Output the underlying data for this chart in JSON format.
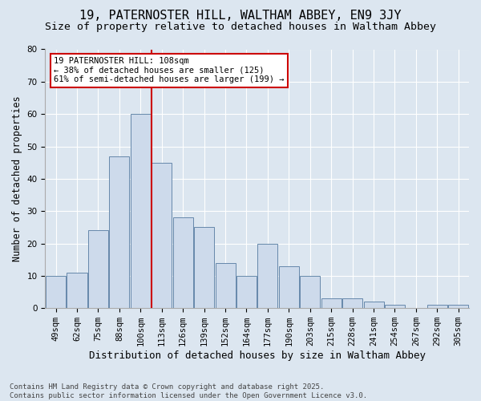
{
  "title1": "19, PATERNOSTER HILL, WALTHAM ABBEY, EN9 3JY",
  "title2": "Size of property relative to detached houses in Waltham Abbey",
  "xlabel": "Distribution of detached houses by size in Waltham Abbey",
  "ylabel": "Number of detached properties",
  "categories": [
    "49sqm",
    "62sqm",
    "75sqm",
    "88sqm",
    "100sqm",
    "113sqm",
    "126sqm",
    "139sqm",
    "152sqm",
    "164sqm",
    "177sqm",
    "190sqm",
    "203sqm",
    "215sqm",
    "228sqm",
    "241sqm",
    "254sqm",
    "267sqm",
    "292sqm",
    "305sqm"
  ],
  "values": [
    10,
    11,
    24,
    47,
    60,
    45,
    28,
    25,
    14,
    10,
    20,
    13,
    10,
    3,
    3,
    2,
    1,
    0,
    1,
    1
  ],
  "bar_color": "#cddaeb",
  "bar_edge_color": "#6688aa",
  "vline_x": 4.5,
  "vline_color": "#cc0000",
  "annotation_text": "19 PATERNOSTER HILL: 108sqm\n← 38% of detached houses are smaller (125)\n61% of semi-detached houses are larger (199) →",
  "annotation_box_color": "#ffffff",
  "annotation_box_edge": "#cc0000",
  "ylim": [
    0,
    80
  ],
  "yticks": [
    0,
    10,
    20,
    30,
    40,
    50,
    60,
    70,
    80
  ],
  "background_color": "#dce6f0",
  "footer": "Contains HM Land Registry data © Crown copyright and database right 2025.\nContains public sector information licensed under the Open Government Licence v3.0.",
  "title1_fontsize": 11,
  "title2_fontsize": 9.5,
  "xlabel_fontsize": 9,
  "ylabel_fontsize": 8.5,
  "tick_fontsize": 7.5,
  "annotation_fontsize": 7.5,
  "footer_fontsize": 6.5
}
